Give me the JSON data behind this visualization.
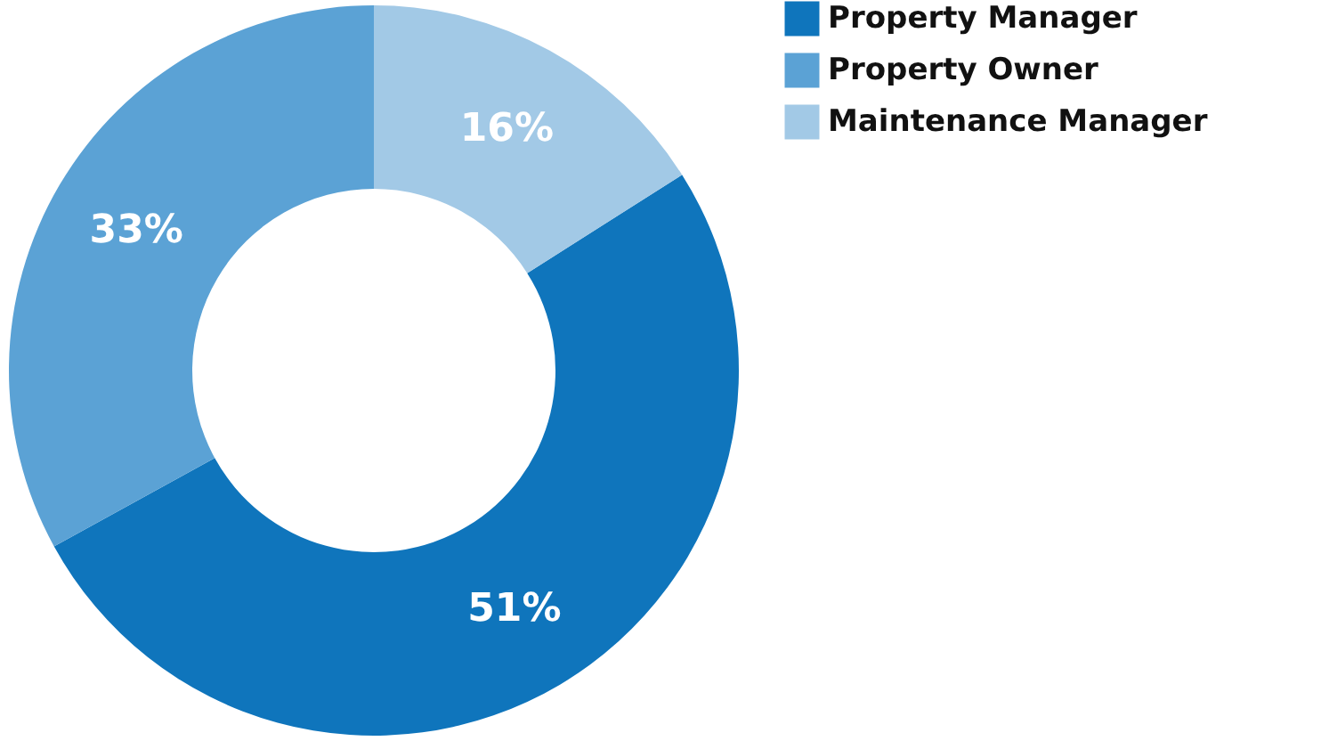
{
  "chart_data": {
    "type": "donut",
    "categories": [
      "Property Manager",
      "Property Owner",
      "Maintenance Manager"
    ],
    "values": [
      51,
      33,
      16
    ],
    "colors": [
      "#0f75bc",
      "#5ba2d5",
      "#a2c9e6"
    ],
    "value_labels": [
      "51%",
      "33%",
      "16%"
    ],
    "legend": "right"
  }
}
